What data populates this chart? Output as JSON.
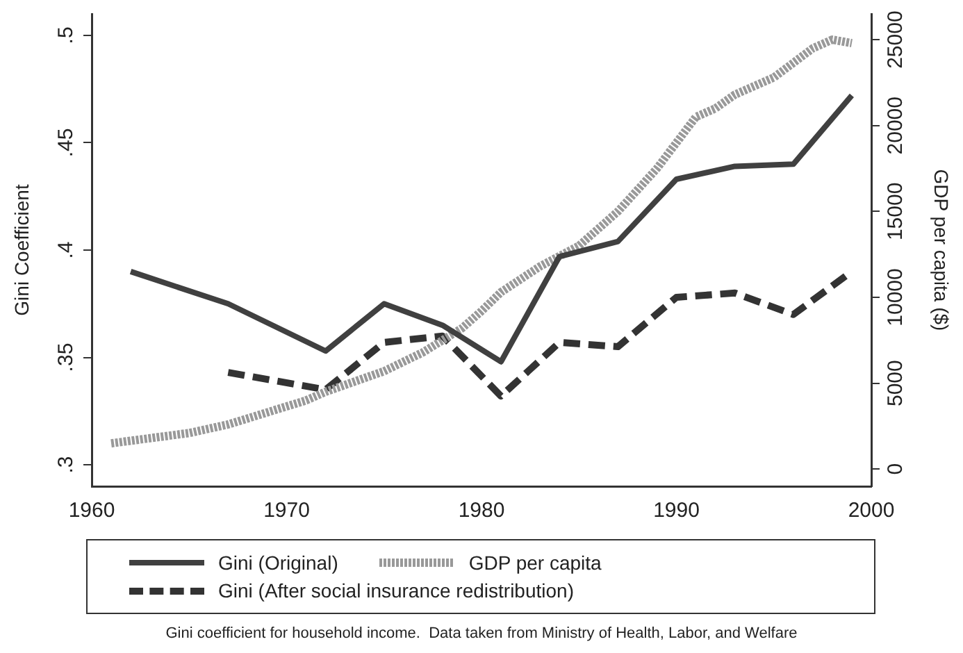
{
  "chart_data": {
    "type": "line",
    "ylabel": "Gini Coefficient",
    "y2label": "GDP per capita ($)",
    "xlim": [
      1960,
      2000
    ],
    "xticks": [
      1960,
      1970,
      1980,
      1990,
      2000
    ],
    "ylim": [
      0.29,
      0.51
    ],
    "yticks": [
      {
        "value": 0.3,
        "label": ".3"
      },
      {
        "value": 0.35,
        "label": ".35"
      },
      {
        "value": 0.4,
        "label": ".4"
      },
      {
        "value": 0.45,
        "label": ".45"
      },
      {
        "value": 0.5,
        "label": ".5"
      }
    ],
    "y2lim": [
      -1000,
      26500
    ],
    "y2ticks": [
      0,
      5000,
      10000,
      15000,
      20000,
      25000
    ],
    "grid": false,
    "legend": "bottom",
    "marker": "none",
    "series": [
      {
        "name": "Gini (Original)",
        "color": "#404040",
        "line_style": "solid",
        "x": [
          1962,
          1967,
          1972,
          1975,
          1978,
          1981,
          1984,
          1987,
          1990,
          1993,
          1996,
          1999
        ],
        "values": [
          0.39,
          0.375,
          0.353,
          0.375,
          0.365,
          0.348,
          0.397,
          0.404,
          0.433,
          0.439,
          0.44,
          0.472
        ]
      },
      {
        "name": "GDP per capita",
        "color": "#999999",
        "line_style": "dotted",
        "axis": "y2",
        "x": [
          1961,
          1963,
          1965,
          1967,
          1969,
          1971,
          1972,
          1973,
          1975,
          1977,
          1979,
          1980,
          1981,
          1983,
          1985,
          1987,
          1989,
          1990,
          1991,
          1992,
          1993,
          1995,
          1997,
          1998,
          1999
        ],
        "values": [
          1500,
          1800,
          2100,
          2600,
          3300,
          4000,
          4500,
          4900,
          5700,
          6800,
          8200,
          9200,
          10300,
          11800,
          13000,
          15000,
          17500,
          19000,
          20500,
          21000,
          21800,
          22800,
          24500,
          25000,
          24800
        ]
      },
      {
        "name": "Gini (After social insurance redistribution)",
        "color": "#333333",
        "line_style": "dashed",
        "x": [
          1967,
          1972,
          1975,
          1978,
          1981,
          1984,
          1987,
          1990,
          1993,
          1996,
          1999
        ],
        "values": [
          0.343,
          0.335,
          0.357,
          0.36,
          0.332,
          0.357,
          0.355,
          0.378,
          0.38,
          0.37,
          0.39
        ]
      }
    ],
    "annotations": [
      "Gini coefficient for household income.  Data taken from Ministry of Health, Labor, and Welfare"
    ]
  }
}
